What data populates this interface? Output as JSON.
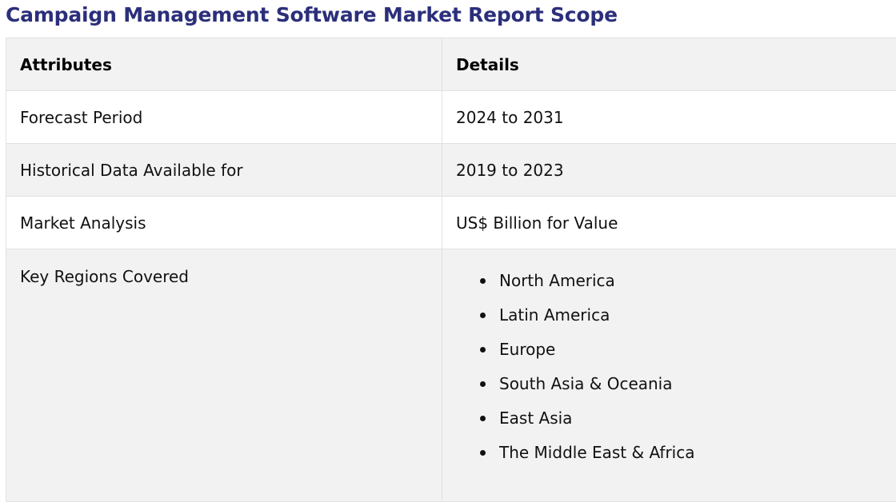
{
  "title": "Campaign Management Software Market Report Scope",
  "table": {
    "headers": {
      "attributes": "Attributes",
      "details": "Details"
    },
    "rows": [
      {
        "attribute": "Forecast Period",
        "detail": "2024 to 2031"
      },
      {
        "attribute": "Historical Data Available for",
        "detail": "2019 to 2023"
      },
      {
        "attribute": "Market Analysis",
        "detail": "US$ Billion for Value"
      }
    ],
    "regions": {
      "attribute": "Key Regions Covered",
      "items": [
        "North America",
        "Latin America",
        "Europe",
        "South Asia & Oceania",
        "East Asia",
        "The Middle East & Africa"
      ]
    }
  },
  "colors": {
    "title": "#2b2f7a",
    "header_bg": "#f2f2f2",
    "alt_row_bg": "#f2f2f2",
    "border": "#e1e1e1"
  }
}
